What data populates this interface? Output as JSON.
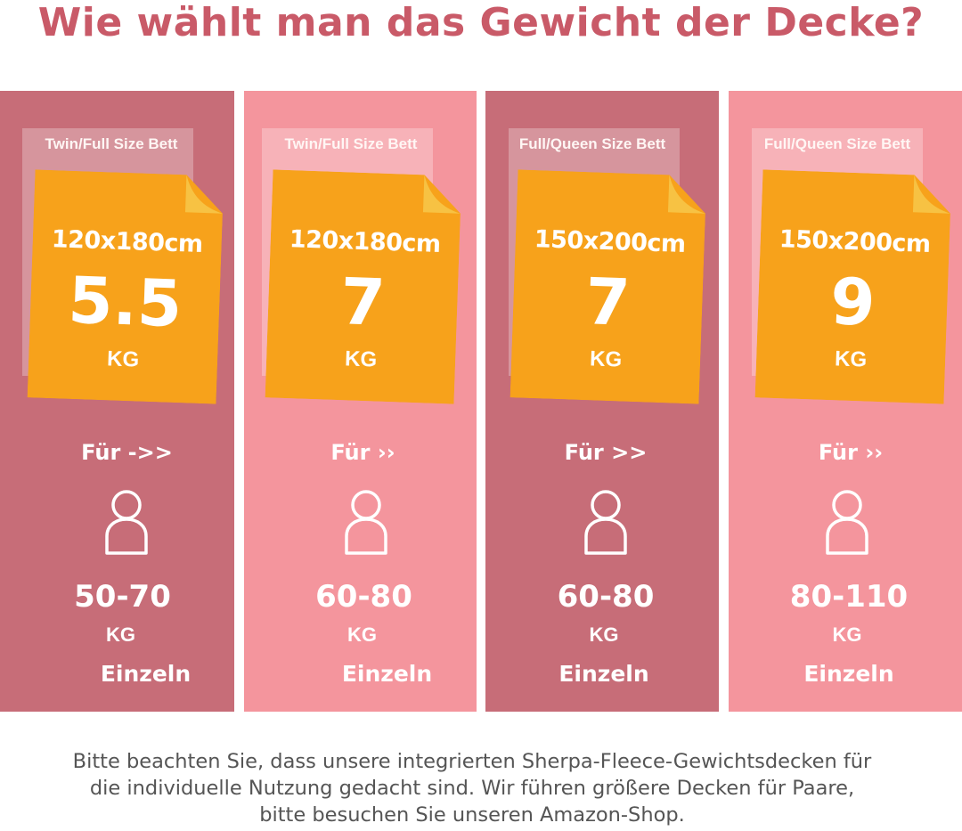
{
  "title": "Wie wählt man das Gewicht der Decke?",
  "colors": {
    "title": "#c95a68",
    "panel_dark": "#c76d78",
    "panel_light": "#f4959d",
    "note": "#f7a21b",
    "note_fold": "#f7c243",
    "text": "#ffffff"
  },
  "panels": [
    {
      "bed": "Twin/Full Size Bett",
      "dims": "120x180cm",
      "weight": "5.5",
      "weight_unit": "KG",
      "for_label": "Für ->>",
      "icon": "person-icon",
      "body_range": "50-70",
      "body_unit": "KG",
      "usage": "Einzeln"
    },
    {
      "bed": "Twin/Full Size Bett",
      "dims": "120x180cm",
      "weight": "7",
      "weight_unit": "KG",
      "for_label": "Für ››",
      "icon": "person-icon",
      "body_range": "60-80",
      "body_unit": "KG",
      "usage": "Einzeln"
    },
    {
      "bed": "Full/Queen Size Bett",
      "dims": "150x200cm",
      "weight": "7",
      "weight_unit": "KG",
      "for_label": "Für >>",
      "icon": "person-icon",
      "body_range": "60-80",
      "body_unit": "KG",
      "usage": "Einzeln"
    },
    {
      "bed": "Full/Queen Size Bett",
      "dims": "150x200cm",
      "weight": "9",
      "weight_unit": "KG",
      "for_label": "Für ››",
      "icon": "person-icon",
      "body_range": "80-110",
      "body_unit": "KG",
      "usage": "Einzeln"
    }
  ],
  "footer": {
    "line1": "Bitte beachten Sie, dass unsere integrierten Sherpa-Fleece-Gewichtsdecken für",
    "line2": "die individuelle Nutzung gedacht sind. Wir führen größere Decken für Paare,",
    "line3": "bitte besuchen Sie unseren Amazon-Shop."
  }
}
